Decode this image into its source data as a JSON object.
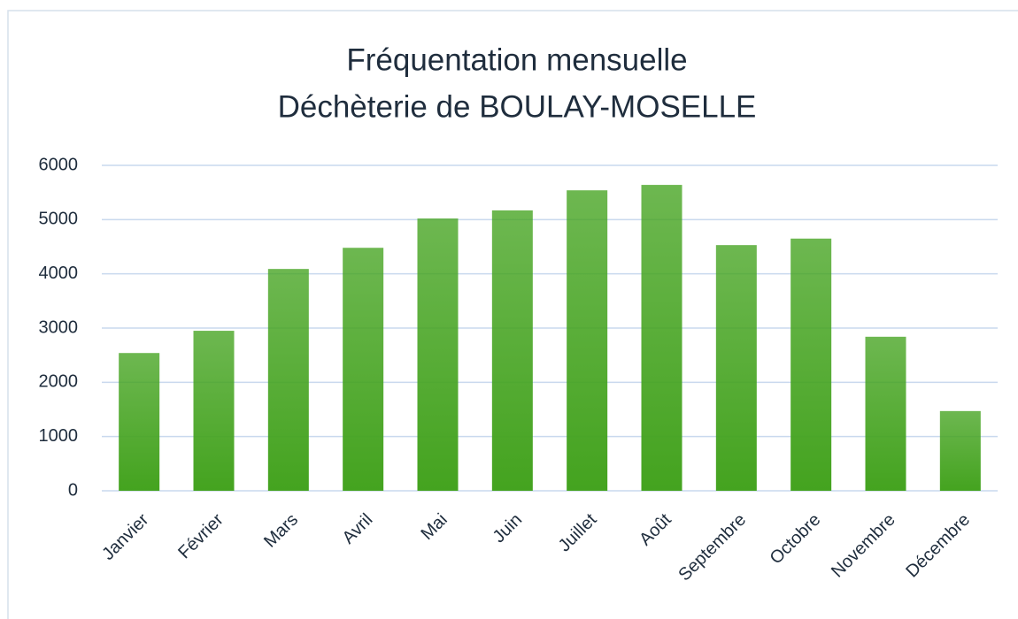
{
  "chart_data": {
    "type": "bar",
    "title": "Fréquentation mensuelle",
    "subtitle": "Déchèterie de BOULAY-MOSELLE",
    "categories": [
      "Janvier",
      "Février",
      "Mars",
      "Avril",
      "Mai",
      "Juin",
      "Juillet",
      "Août",
      "Septembre",
      "Octobre",
      "Novembre",
      "Décembre"
    ],
    "values": [
      2540,
      2950,
      4090,
      4480,
      5020,
      5170,
      5540,
      5640,
      4530,
      4650,
      2840,
      1470
    ],
    "color": "#44a31f",
    "ylim": [
      0,
      6000
    ],
    "yticks": [
      0,
      1000,
      2000,
      3000,
      4000,
      5000,
      6000
    ],
    "grid": true
  }
}
